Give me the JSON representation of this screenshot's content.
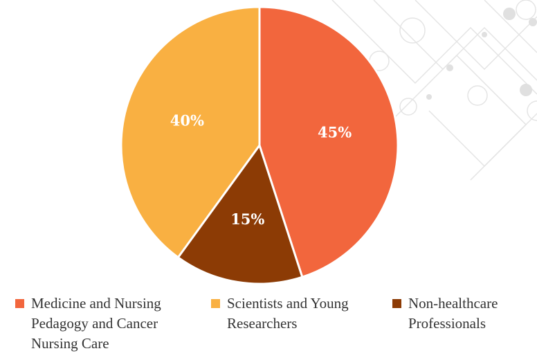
{
  "chart_data": {
    "type": "pie",
    "categories": [
      "Medicine and Nursing Pedagogy and Cancer Nursing Care",
      "Scientists and Young Researchers",
      "Non-healthcare Professionals"
    ],
    "values": [
      45,
      40,
      15
    ],
    "value_labels": [
      "45%",
      "40%",
      "15%"
    ],
    "colors": [
      "#f2663d",
      "#f9b042",
      "#8c3b05"
    ],
    "legend": "bottom"
  }
}
